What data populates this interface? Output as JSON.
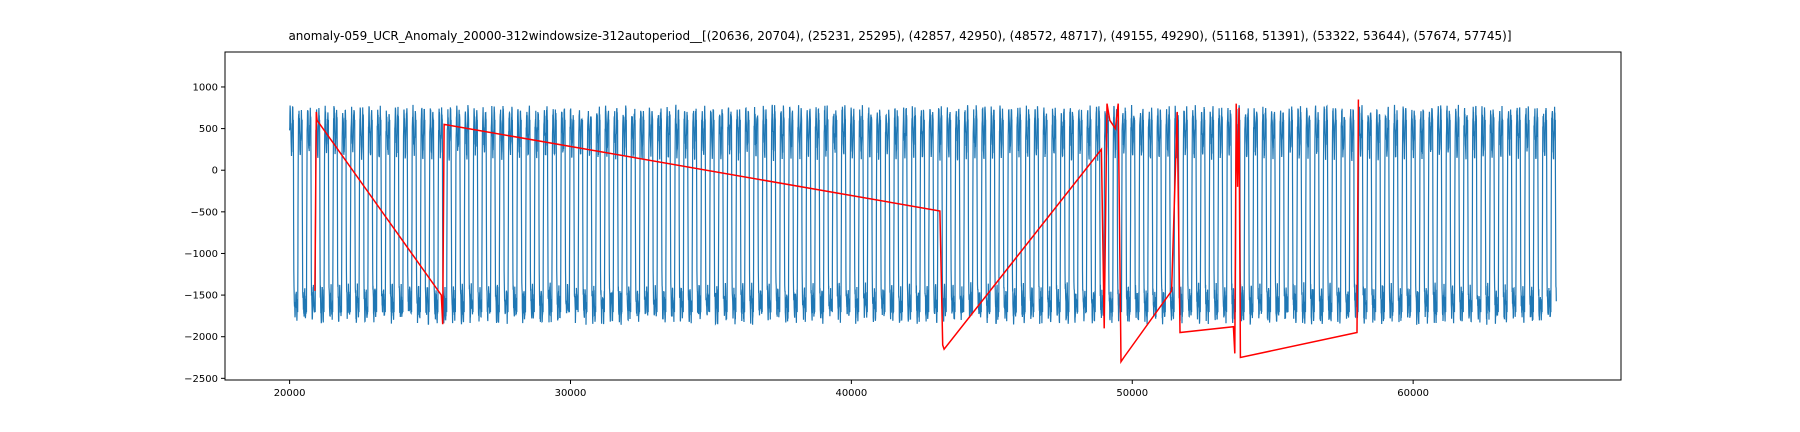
{
  "chart_data": {
    "type": "line",
    "title": "anomaly-059_UCR_Anomaly_20000-312windowsize-312autoperiod__[(20636, 20704), (25231, 25295), (42857, 42950), (48572, 48717), (49155, 49290), (51168, 51391), (53322, 53644), (57674, 57745)]",
    "xlabel": "",
    "ylabel": "",
    "xlim": [
      17700,
      67400
    ],
    "ylim": [
      -2520,
      1420
    ],
    "x_ticks": [
      20000,
      30000,
      40000,
      50000,
      60000
    ],
    "x_tick_labels": [
      "20000",
      "30000",
      "40000",
      "50000",
      "60000"
    ],
    "y_ticks": [
      1000,
      500,
      0,
      -500,
      -1000,
      -1500,
      -2000,
      -2500
    ],
    "y_tick_labels": [
      "1000",
      "500",
      "0",
      "−500",
      "−1000",
      "−1500",
      "−2000",
      "−2500"
    ],
    "grid": false,
    "series": [
      {
        "color": "#1f77b4",
        "description": "periodic signal from x=20000 to x=65100, period about 312, oscillating roughly between -1800 and 700",
        "x_start": 20000,
        "x_end": 65100,
        "period": 312,
        "y_high": 700,
        "y_low": -1800
      },
      {
        "color": "#ff0000",
        "description": "anomaly segments",
        "points": [
          [
            20900,
            -1450
          ],
          [
            20950,
            700
          ],
          [
            20980,
            600
          ],
          [
            25400,
            -1500
          ],
          [
            25450,
            -1850
          ],
          [
            25500,
            550
          ],
          [
            43150,
            -490
          ],
          [
            43250,
            -2100
          ],
          [
            43300,
            -2150
          ],
          [
            48900,
            250
          ],
          [
            49000,
            -1900
          ],
          [
            49100,
            800
          ],
          [
            49200,
            600
          ],
          [
            49400,
            500
          ],
          [
            49500,
            800
          ],
          [
            49600,
            -2300
          ],
          [
            49700,
            -2250
          ],
          [
            51400,
            -1450
          ],
          [
            51600,
            700
          ],
          [
            51700,
            -1950
          ],
          [
            53600,
            -1880
          ],
          [
            53650,
            -2200
          ],
          [
            53700,
            800
          ],
          [
            53750,
            -200
          ],
          [
            53800,
            750
          ],
          [
            53850,
            -2250
          ],
          [
            58000,
            -1950
          ],
          [
            58050,
            850
          ]
        ]
      }
    ]
  }
}
